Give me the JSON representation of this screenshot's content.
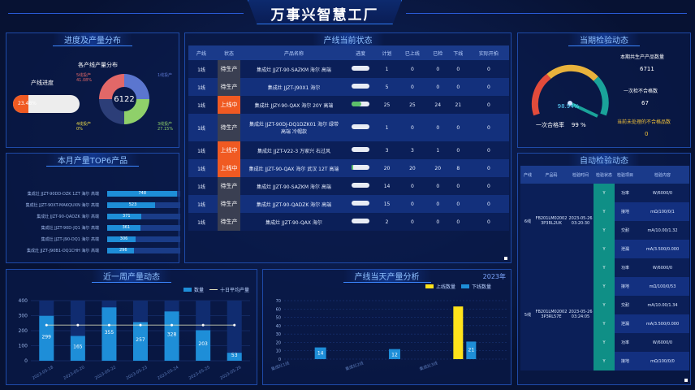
{
  "title": "万事兴智慧工厂",
  "progress": {
    "title": "进度及产量分布",
    "progress_label": "产线进度",
    "progress_value": "23.48%",
    "progress_fraction": 0.2348,
    "donut_title": "各产线产量分布",
    "donut_center": "6122",
    "slices": [
      {
        "label": "1线投产",
        "pct": "41.08%",
        "color": "#5b76cf"
      },
      {
        "label": "2线投产",
        "pct": "",
        "color": "#4fa3e8"
      },
      {
        "label": "3线投产",
        "pct": "27.15%",
        "color": "#8fd06a"
      },
      {
        "label": "4线投产",
        "pct": "0%",
        "color": "#e8d84a"
      },
      {
        "label": "5线投产",
        "pct": "",
        "color": "#e26868"
      }
    ]
  },
  "plan": {
    "title": "产线当前状态",
    "headers": [
      "产线",
      "状态",
      "产品名称",
      "进度",
      "计划",
      "已上线",
      "已检",
      "下线",
      "实际开拍"
    ],
    "rows": [
      {
        "line": "1线",
        "status": "待生产",
        "kind": "wait",
        "name": "集成灶 JJZT-90-SAZKM 海尔 高端",
        "progress": 0,
        "plan": "1",
        "online": "0",
        "checked": "0",
        "down": "0",
        "actual": "0"
      },
      {
        "line": "1线",
        "status": "待生产",
        "kind": "wait",
        "name": "集成灶 JJZT-J90X1 海尔",
        "progress": 0,
        "plan": "5",
        "online": "0",
        "checked": "0",
        "down": "0",
        "actual": "0"
      },
      {
        "line": "1线",
        "status": "上线中",
        "kind": "run",
        "name": "集成灶 JJZY-90-QAX 海尔 20Y 高端",
        "progress": 0.55,
        "plan": "25",
        "online": "25",
        "checked": "24",
        "down": "21",
        "actual": "0"
      },
      {
        "line": "1线",
        "status": "待生产",
        "kind": "wait",
        "name": "集成灶 JJZT-90DJ-DQ1DZK01 海尔 绿带 高端 冷帽款",
        "progress": 0,
        "plan": "1",
        "online": "0",
        "checked": "0",
        "down": "0",
        "actual": "0"
      },
      {
        "line": "1线",
        "status": "上线中",
        "kind": "run",
        "name": "集成灶 JJZT-V22-3 万家兴 右过风",
        "progress": 0,
        "plan": "3",
        "online": "3",
        "checked": "1",
        "down": "0",
        "actual": "0"
      },
      {
        "line": "1线",
        "status": "上线中",
        "kind": "run",
        "name": "集成灶 JJZT-90-QAX 海尔 武汉 12T 高端",
        "progress": 0.1,
        "plan": "20",
        "online": "20",
        "checked": "20",
        "down": "8",
        "actual": "0"
      },
      {
        "line": "1线",
        "status": "待生产",
        "kind": "wait",
        "name": "集成灶 JJZT-90-SAZKM 海尔 高端",
        "progress": 0,
        "plan": "14",
        "online": "0",
        "checked": "0",
        "down": "0",
        "actual": "0"
      },
      {
        "line": "1线",
        "status": "待生产",
        "kind": "wait",
        "name": "集成灶 JJZT-90-QADZK 海尔 高端",
        "progress": 0,
        "plan": "15",
        "online": "0",
        "checked": "0",
        "down": "0",
        "actual": "0"
      },
      {
        "line": "1线",
        "status": "待生产",
        "kind": "wait",
        "name": "集成灶 JJZT-90-QAX 海尔",
        "progress": 0,
        "plan": "2",
        "online": "0",
        "checked": "0",
        "down": "0",
        "actual": "0"
      }
    ]
  },
  "inspect": {
    "title": "当期检验动态",
    "gauge_value": "98.94%",
    "gauge_fraction": 0.9894,
    "gauge_caption": "一次合格率",
    "gauge_caption2": "99 %",
    "stat1_label": "本期共生产产品数量",
    "stat1_value": "6711",
    "stat2_label": "一次检不合格数",
    "stat2_value": "67",
    "stat3_label": "当前未处理的不合格品数",
    "stat3_value": "0"
  },
  "top6": {
    "title": "本月产量TOP6产品",
    "items": [
      {
        "name": "集成灶 JJZT-90DD-DZK 1ZT 海尔 高端",
        "value": "748",
        "frac": 0.95
      },
      {
        "name": "集成灶 JJZT-90XT-MAKQUXN 海尔 高端",
        "value": "523",
        "frac": 0.66
      },
      {
        "name": "集成灶 JJZT-90-QADZK 海尔 高端",
        "value": "371",
        "frac": 0.47
      },
      {
        "name": "集成灶 JJZT-90D-JQ1 海尔 高端",
        "value": "361",
        "frac": 0.46
      },
      {
        "name": "集成灶 JJZT-J90-DQ1 海尔 高端",
        "value": "306",
        "frac": 0.39
      },
      {
        "name": "集成灶 JJZT-J90B1-DQ1CHH 海尔 高端",
        "value": "296",
        "frac": 0.37
      }
    ]
  },
  "week": {
    "title": "近一周产量动态",
    "legend_bar": "数量",
    "legend_line": "十日平均产量"
  },
  "chart_data": [
    {
      "type": "bar",
      "title": "近一周产量动态",
      "categories": [
        "2023-05-18",
        "2023-05-20",
        "2023-05-22",
        "2023-05-23",
        "2023-05-24",
        "2023-05-25",
        "2023-05-26"
      ],
      "series": [
        {
          "name": "数量",
          "values": [
            299,
            165,
            355,
            257,
            328,
            203,
            53
          ]
        },
        {
          "name": "十日平均产量",
          "values": [
            237,
            237,
            237,
            237,
            237,
            237,
            237
          ]
        }
      ],
      "ylim": [
        0,
        400
      ],
      "yticks": [
        "0",
        "100",
        "200",
        "300",
        "400"
      ]
    },
    {
      "type": "bar",
      "title": "产线当天产量分析",
      "categories": [
        "集成灶1线",
        "集成灶2线",
        "集成灶3线"
      ],
      "series": [
        {
          "name": "上线数量",
          "values": [
            14,
            12,
            63
          ]
        },
        {
          "name": "下线数量",
          "values": [
            0,
            0,
            21
          ]
        }
      ],
      "ylim": [
        0,
        70
      ],
      "yticks": [
        "0",
        "10",
        "20",
        "30",
        "40",
        "50",
        "60",
        "70"
      ]
    }
  ],
  "today": {
    "title": "产线当天产量分析",
    "year": "2023年",
    "legend1": "上线数量",
    "legend2": "下线数量",
    "bar_labels": [
      "14",
      "12",
      "21"
    ]
  },
  "auto": {
    "title": "自动检验动态",
    "headers": [
      "产线",
      "产品码",
      "检验时间",
      "检验状态",
      "检验项目",
      "检验内容"
    ],
    "group1": {
      "line": "6线",
      "code": "FB201LM02002 3P3RL2UK",
      "time": "2023-05-26 03:20:30"
    },
    "group2": {
      "line": "5线",
      "code": "FB201LM02002 3P3RL57E",
      "time": "2023-05-26 03:24:05"
    },
    "rows": [
      {
        "status": "Y",
        "item": "功率",
        "content": "W/6000/0"
      },
      {
        "status": "Y",
        "item": "接地",
        "content": "mΩ/100/0/1"
      },
      {
        "status": "Y",
        "item": "交耐",
        "content": "mA/10.00/1.32"
      },
      {
        "status": "Y",
        "item": "泄漏",
        "content": "mA/3.500/0.000"
      },
      {
        "status": "Y",
        "item": "功率",
        "content": "W/6000/0"
      },
      {
        "status": "Y",
        "item": "接地",
        "content": "mΩ/100/0/53"
      },
      {
        "status": "Y",
        "item": "交耐",
        "content": "mA/10.00/1.34"
      },
      {
        "status": "Y",
        "item": "泄漏",
        "content": "mA/3.500/0.000"
      },
      {
        "status": "Y",
        "item": "功率",
        "content": "W/6000/0"
      },
      {
        "status": "Y",
        "item": "接地",
        "content": "mΩ/100/0/0"
      }
    ]
  }
}
